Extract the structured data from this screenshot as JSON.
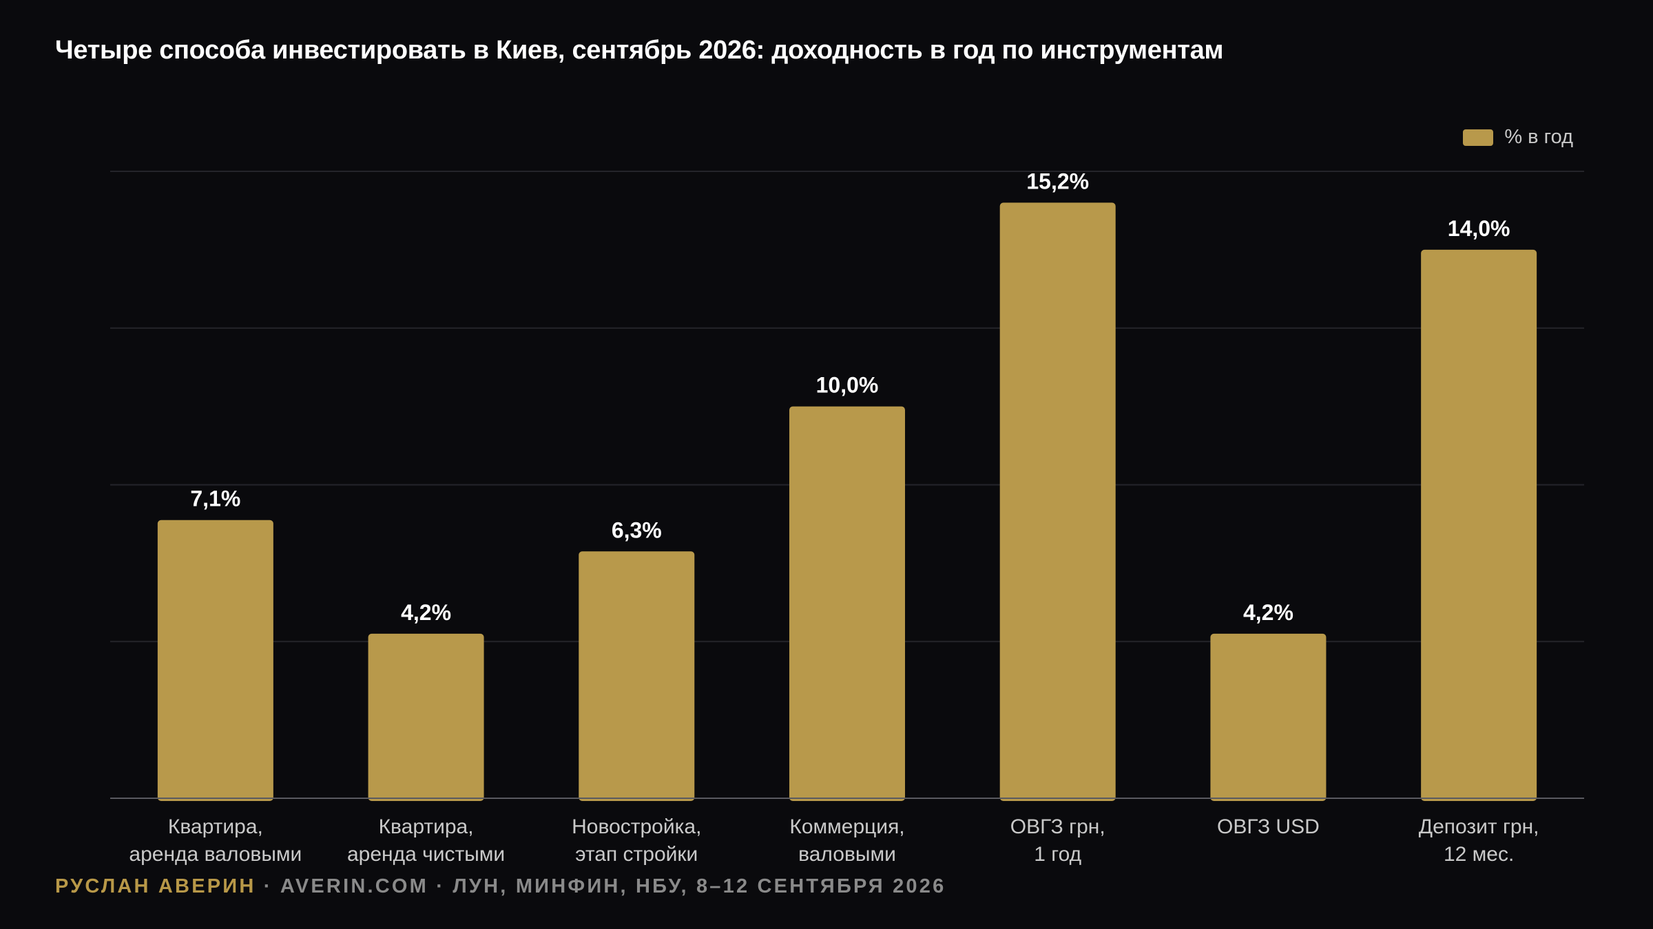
{
  "title": "Четыре способа инвестировать в Киев, сентябрь 2026: доходность в год по инструментам",
  "legend": {
    "label": "% в год"
  },
  "colors": {
    "bar": "#b8994b",
    "grid": "#24242a",
    "baseline": "#5a5a60",
    "accent": "#b89848"
  },
  "footer": {
    "author": "РУСЛАН АВЕРИН",
    "separator": " · ",
    "site": "AVERIN.COM",
    "source": "ЛУН, МИНФИН, НБУ, 8–12 СЕНТЯБРЯ 2026"
  },
  "chart_data": {
    "type": "bar",
    "title": "Четыре способа инвестировать в Киев, сентябрь 2026: доходность в год по инструментам",
    "xlabel": "",
    "ylabel": "",
    "ylim": [
      0,
      16
    ],
    "grid": true,
    "legend_position": "top-right",
    "categories": [
      [
        "Квартира,",
        "аренда валовыми"
      ],
      [
        "Квартира,",
        "аренда чистыми"
      ],
      [
        "Новостройка,",
        "этап стройки"
      ],
      [
        "Коммерция,",
        "валовыми"
      ],
      [
        "ОВГЗ грн,",
        "1 год"
      ],
      [
        "ОВГЗ USD"
      ],
      [
        "Депозит грн,",
        "12 мес."
      ]
    ],
    "series": [
      {
        "name": "% в год",
        "values": [
          7.1,
          4.2,
          6.3,
          10.0,
          15.2,
          4.2,
          14.0
        ],
        "labels": [
          "7,1%",
          "4,2%",
          "6,3%",
          "10,0%",
          "15,2%",
          "4,2%",
          "14,0%"
        ]
      }
    ]
  }
}
